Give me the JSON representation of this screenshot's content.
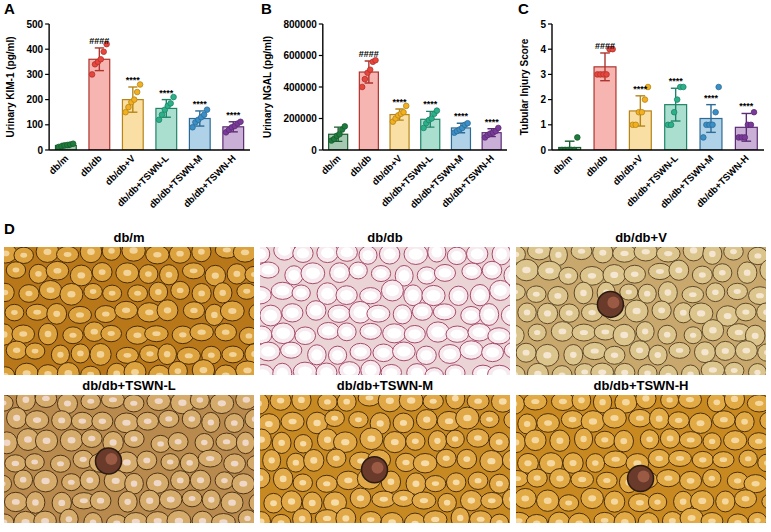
{
  "chart_data": [
    {
      "type": "bar",
      "panel": "A",
      "y_label": "Urinary KIM-1 (pg/ml)",
      "categories": [
        "db/m",
        "db/db",
        "db/db+V",
        "db/db+TSWN-L",
        "db/db+TSWN-M",
        "db/db+TSWN-H"
      ],
      "values": [
        18,
        360,
        200,
        165,
        125,
        92
      ],
      "errors": [
        8,
        45,
        50,
        35,
        30,
        20
      ],
      "points": [
        [
          12,
          15,
          18,
          20,
          22,
          25
        ],
        [
          300,
          340,
          350,
          360,
          390,
          420
        ],
        [
          150,
          170,
          190,
          200,
          230,
          260
        ],
        [
          120,
          140,
          160,
          175,
          185,
          210
        ],
        [
          90,
          110,
          120,
          130,
          140,
          160
        ],
        [
          70,
          80,
          90,
          95,
          105,
          112
        ]
      ],
      "annotations": [
        null,
        "####",
        "****",
        "****",
        "****",
        "****"
      ],
      "colors": [
        "#1e7b3c",
        "#e8453c",
        "#f2b01e",
        "#2bb08a",
        "#3a8fc7",
        "#7a3a9a"
      ],
      "ylim": [
        0,
        500
      ],
      "yticks": [
        0,
        100,
        200,
        300,
        400,
        500
      ],
      "grid": false
    },
    {
      "type": "bar",
      "panel": "B",
      "y_label": "Urinary NGAL (pg/ml)",
      "categories": [
        "db/m",
        "db/db",
        "db/db+V",
        "db/db+TSWN-L",
        "db/db+TSWN-M",
        "db/db+TSWN-H"
      ],
      "values": [
        100000,
        495000,
        225000,
        195000,
        140000,
        110000
      ],
      "errors": [
        45000,
        70000,
        35000,
        50000,
        30000,
        25000
      ],
      "points": [
        [
          60000,
          70000,
          90000,
          100000,
          130000,
          150000
        ],
        [
          400000,
          450000,
          490000,
          510000,
          560000,
          570000
        ],
        [
          180000,
          200000,
          220000,
          230000,
          240000,
          280000
        ],
        [
          140000,
          170000,
          190000,
          200000,
          230000,
          250000
        ],
        [
          110000,
          120000,
          130000,
          140000,
          160000,
          170000
        ],
        [
          80000,
          95000,
          105000,
          110000,
          120000,
          140000
        ]
      ],
      "annotations": [
        null,
        "####",
        "****",
        "****",
        "****",
        "****"
      ],
      "colors": [
        "#1e7b3c",
        "#e8453c",
        "#f2b01e",
        "#2bb08a",
        "#3a8fc7",
        "#7a3a9a"
      ],
      "ylim": [
        0,
        800000
      ],
      "yticks": [
        0,
        200000,
        400000,
        600000,
        800000
      ],
      "grid": false
    },
    {
      "type": "bar",
      "panel": "C",
      "y_label": "Tubular Injury Score",
      "categories": [
        "db/m",
        "db/db",
        "db/db+V",
        "db/db+TSWN-L",
        "db/db+TSWN-M",
        "db/db+TSWN-H"
      ],
      "values": [
        0.1,
        3.3,
        1.55,
        1.8,
        1.25,
        0.9
      ],
      "errors": [
        0.25,
        0.55,
        0.6,
        0.65,
        0.55,
        0.55
      ],
      "points": [
        [
          0,
          0,
          0,
          0,
          0,
          0.5
        ],
        [
          3,
          3,
          3,
          3,
          4,
          4
        ],
        [
          1,
          1,
          1.5,
          1.5,
          2,
          2.5
        ],
        [
          1,
          1,
          1.5,
          2,
          2.5,
          2.5
        ],
        [
          0.5,
          1,
          1,
          1,
          1.5,
          2.5
        ],
        [
          0.5,
          0.5,
          0.5,
          1,
          1,
          1.5
        ]
      ],
      "annotations": [
        null,
        "####",
        "****",
        "****",
        "****",
        "****"
      ],
      "colors": [
        "#1e7b3c",
        "#e8453c",
        "#f2b01e",
        "#2bb08a",
        "#3a8fc7",
        "#7a3a9a"
      ],
      "ylim": [
        0,
        5
      ],
      "yticks": [
        0,
        1,
        2,
        3,
        4,
        5
      ],
      "grid": false
    }
  ],
  "panel_d": {
    "letter": "D",
    "images": [
      {
        "label": "db/m"
      },
      {
        "label": "db/db"
      },
      {
        "label": "db/db+V"
      },
      {
        "label": "db/db+TSWN-L"
      },
      {
        "label": "db/db+TSWN-M"
      },
      {
        "label": "db/db+TSWN-H"
      }
    ]
  }
}
